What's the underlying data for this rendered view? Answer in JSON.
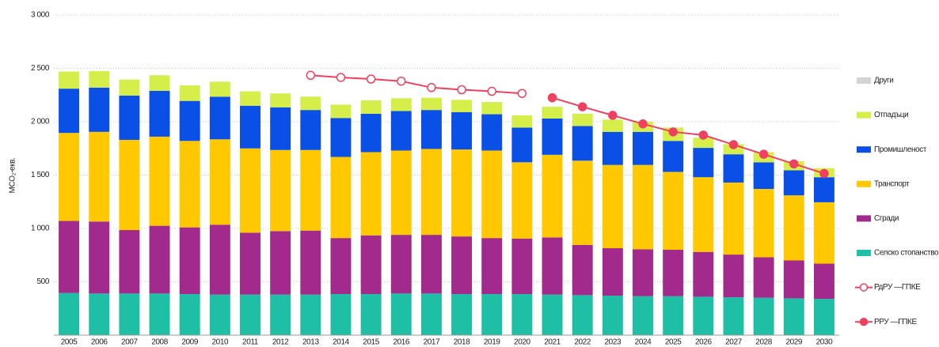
{
  "chart_data": {
    "type": "bar",
    "y_label": "MCO₂-екв.",
    "categories": [
      "2005",
      "2006",
      "2007",
      "2008",
      "2009",
      "2010",
      "2011",
      "2012",
      "2013",
      "2014",
      "2015",
      "2016",
      "2017",
      "2018",
      "2019",
      "2020",
      "2021",
      "2022",
      "2023",
      "2024",
      "2025",
      "2026",
      "2027",
      "2028",
      "2029",
      "2030"
    ],
    "stacked": true,
    "ylim": [
      0,
      3000
    ],
    "yticks": [
      500,
      {
        "value": 1000,
        "label": "1 000"
      },
      {
        "value": 1500,
        "label": "1 500"
      },
      {
        "value": 2000,
        "label": "2 000"
      },
      {
        "value": 2500,
        "label": "2 500"
      },
      {
        "value": 3000,
        "label": "3 000"
      }
    ],
    "grid": true,
    "legend": "right",
    "series": [
      {
        "name": "Селско стопанство",
        "color": "#1fbfa6",
        "values": [
          395,
          390,
          390,
          390,
          385,
          380,
          380,
          380,
          380,
          385,
          385,
          390,
          390,
          385,
          385,
          385,
          380,
          375,
          370,
          365,
          365,
          360,
          355,
          350,
          345,
          340
        ]
      },
      {
        "name": "Сгради",
        "color": "#a12a8c",
        "values": [
          675,
          675,
          595,
          635,
          625,
          655,
          580,
          595,
          600,
          525,
          550,
          550,
          550,
          540,
          525,
          520,
          535,
          470,
          445,
          440,
          435,
          420,
          400,
          380,
          355,
          330
        ]
      },
      {
        "name": "Транспорт",
        "color": "#ffc800",
        "values": [
          825,
          840,
          845,
          835,
          810,
          800,
          790,
          760,
          755,
          760,
          780,
          790,
          805,
          815,
          820,
          715,
          775,
          790,
          780,
          790,
          730,
          700,
          675,
          640,
          610,
          575
        ]
      },
      {
        "name": "Промишленост",
        "color": "#0a50e6",
        "values": [
          415,
          415,
          415,
          430,
          375,
          400,
          400,
          400,
          375,
          365,
          360,
          370,
          365,
          350,
          340,
          325,
          340,
          325,
          310,
          310,
          290,
          275,
          265,
          250,
          235,
          235
        ]
      },
      {
        "name": "Отпадъци",
        "color": "#d5ee4a",
        "values": [
          160,
          155,
          150,
          145,
          145,
          140,
          135,
          130,
          125,
          125,
          125,
          120,
          115,
          115,
          115,
          115,
          110,
          115,
          115,
          95,
          125,
          95,
          95,
          95,
          85,
          85
        ]
      },
      {
        "name": "Други",
        "color": "#d3d3d3",
        "values": [
          0,
          0,
          0,
          0,
          0,
          0,
          0,
          0,
          0,
          0,
          0,
          0,
          0,
          0,
          0,
          0,
          0,
          0,
          0,
          0,
          0,
          0,
          0,
          0,
          0,
          0
        ]
      }
    ],
    "lines": [
      {
        "name": "РдРУ —ГПКЕ",
        "color": "#f0405f",
        "marker": "hollow",
        "values": [
          null,
          null,
          null,
          null,
          null,
          null,
          null,
          null,
          2435,
          2415,
          2400,
          2380,
          2320,
          2300,
          2285,
          2265,
          null,
          null,
          null,
          null,
          null,
          null,
          null,
          null,
          null,
          null
        ]
      },
      {
        "name": "РРУ —ГПКЕ",
        "color": "#f0405f",
        "marker": "filled",
        "values": [
          null,
          null,
          null,
          null,
          null,
          null,
          null,
          null,
          null,
          null,
          null,
          null,
          null,
          null,
          null,
          null,
          2225,
          2140,
          2060,
          1980,
          1905,
          1875,
          1785,
          1695,
          1605,
          1515
        ]
      }
    ]
  }
}
